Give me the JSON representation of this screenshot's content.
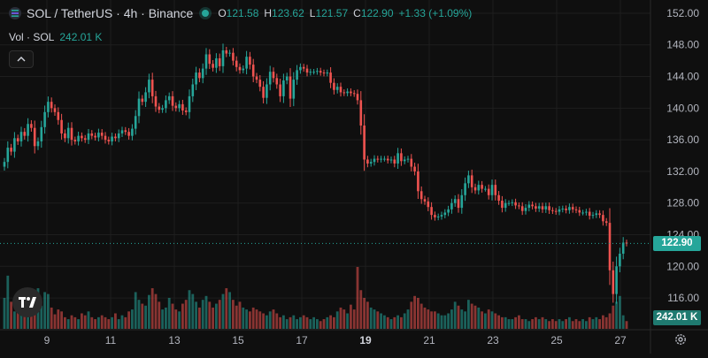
{
  "header": {
    "symbol_title": "SOL / TetherUS · 4h · Binance",
    "ohlc": [
      {
        "key": "O",
        "value": "121.58"
      },
      {
        "key": "H",
        "value": "123.62"
      },
      {
        "key": "L",
        "value": "121.57"
      },
      {
        "key": "C",
        "value": "122.90"
      }
    ],
    "change": "+1.33 (+1.09%)"
  },
  "volume_legend": {
    "label": "Vol · SOL",
    "value": "242.01 K"
  },
  "price_tags": {
    "last_price": "122.90",
    "last_volume": "242.01 K"
  },
  "colors": {
    "up": "#26a69a",
    "down": "#ef5350",
    "background": "#0f0f0f",
    "grid": "#1e1e1e",
    "axis_text": "#b2b5be"
  },
  "icons": [
    "solana-logo-icon",
    "live-dot-icon",
    "chevron-up-icon",
    "tradingview-logo-icon",
    "settings-gear-icon"
  ],
  "chart_data": {
    "type": "candlestick",
    "interval": "4h",
    "y_axis": {
      "range": [
        114,
        153
      ],
      "ticks": [
        "116.00",
        "120.00",
        "124.00",
        "128.00",
        "132.00",
        "136.00",
        "140.00",
        "144.00",
        "148.00",
        "152.00"
      ]
    },
    "x_axis": {
      "ticks": [
        "9",
        "11",
        "13",
        "15",
        "17",
        "19",
        "21",
        "23",
        "25",
        "27"
      ],
      "bold_ticks": [
        "19"
      ],
      "tick_day_index": [
        9,
        11,
        13,
        15,
        17,
        19,
        21,
        23,
        25,
        27
      ]
    },
    "grid": true,
    "close": [
      133.2,
      135.0,
      134.5,
      136.2,
      135.8,
      137.0,
      136.5,
      138.0,
      137.5,
      135.2,
      135.8,
      137.6,
      139.5,
      140.8,
      140.0,
      139.5,
      138.5,
      136.8,
      136.2,
      137.5,
      136.0,
      135.8,
      136.5,
      136.2,
      136.0,
      136.8,
      136.5,
      136.3,
      136.9,
      136.5,
      136.0,
      135.8,
      136.4,
      136.2,
      136.8,
      137.2,
      137.0,
      136.5,
      137.4,
      139.0,
      141.2,
      140.8,
      142.0,
      143.6,
      141.5,
      140.2,
      139.8,
      140.0,
      141.0,
      141.5,
      140.3,
      140.0,
      140.5,
      139.7,
      139.5,
      141.5,
      143.0,
      144.5,
      143.8,
      145.0,
      146.8,
      145.6,
      145.1,
      146.3,
      145.3,
      147.3,
      146.9,
      147.0,
      146.0,
      145.2,
      144.8,
      145.0,
      146.5,
      145.5,
      144.0,
      143.6,
      142.7,
      141.3,
      143.0,
      144.6,
      143.8,
      143.0,
      141.5,
      143.5,
      144.0,
      141.2,
      143.6,
      144.8,
      145.2,
      145.0,
      144.5,
      144.6,
      144.6,
      144.7,
      144.5,
      144.4,
      144.5,
      143.2,
      142.3,
      142.7,
      142.0,
      141.9,
      142.1,
      141.9,
      141.8,
      141.0,
      137.8,
      133.5,
      133.0,
      133.2,
      133.6,
      133.5,
      133.6,
      133.6,
      133.4,
      133.5,
      133.0,
      134.3,
      133.3,
      133.5,
      133.6,
      132.6,
      132.0,
      129.5,
      128.5,
      128.2,
      127.5,
      126.5,
      126.2,
      126.3,
      126.5,
      126.8,
      127.2,
      128.0,
      128.5,
      127.4,
      129.0,
      130.5,
      131.5,
      130.0,
      129.6,
      130.3,
      129.8,
      129.8,
      129.0,
      130.3,
      129.0,
      128.3,
      127.4,
      128.0,
      128.0,
      128.1,
      127.7,
      127.6,
      127.0,
      127.4,
      127.8,
      127.6,
      127.3,
      127.6,
      127.2,
      127.6,
      127.1,
      127.0,
      126.9,
      127.2,
      127.3,
      127.1,
      127.5,
      127.2,
      127.1,
      126.8,
      126.8,
      126.9,
      126.4,
      126.5,
      126.7,
      126.5,
      125.7,
      125.5,
      119.5,
      116.5,
      120.0,
      121.6,
      123.0,
      122.9
    ],
    "volume": [
      32,
      55,
      28,
      18,
      22,
      35,
      15,
      20,
      30,
      26,
      42,
      24,
      38,
      36,
      22,
      15,
      20,
      18,
      12,
      10,
      14,
      12,
      10,
      16,
      14,
      18,
      12,
      10,
      12,
      14,
      12,
      10,
      12,
      16,
      10,
      14,
      12,
      18,
      20,
      38,
      30,
      26,
      24,
      35,
      42,
      36,
      28,
      20,
      22,
      32,
      26,
      20,
      18,
      26,
      30,
      40,
      36,
      28,
      22,
      30,
      34,
      28,
      22,
      26,
      30,
      36,
      42,
      38,
      30,
      24,
      28,
      22,
      20,
      18,
      22,
      20,
      18,
      16,
      14,
      18,
      20,
      16,
      12,
      14,
      10,
      12,
      14,
      10,
      12,
      14,
      12,
      10,
      12,
      10,
      8,
      10,
      12,
      14,
      12,
      18,
      22,
      20,
      16,
      25,
      20,
      64,
      40,
      32,
      28,
      22,
      20,
      18,
      16,
      14,
      12,
      10,
      12,
      14,
      12,
      16,
      20,
      28,
      34,
      32,
      26,
      22,
      20,
      18,
      18,
      16,
      14,
      14,
      16,
      20,
      28,
      24,
      20,
      18,
      30,
      26,
      24,
      22,
      18,
      16,
      20,
      18,
      16,
      14,
      12,
      12,
      10,
      10,
      12,
      14,
      10,
      10,
      8,
      10,
      12,
      10,
      12,
      10,
      8,
      10,
      8,
      10,
      8,
      10,
      12,
      8,
      10,
      8,
      10,
      8,
      12,
      10,
      12,
      10,
      14,
      12,
      16,
      24,
      28,
      34,
      14,
      8
    ],
    "last_price": 122.9,
    "last_volume_k": 242.01
  }
}
